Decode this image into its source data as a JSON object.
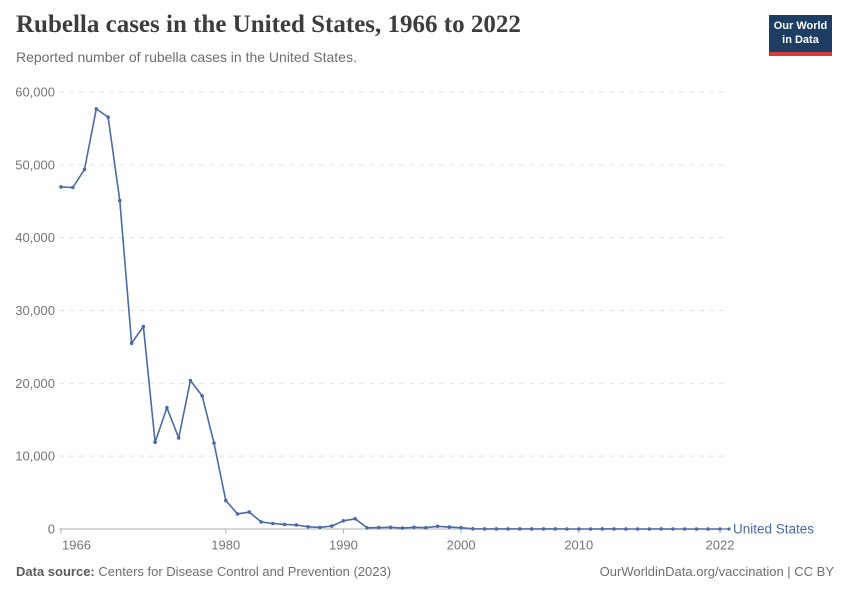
{
  "header": {
    "title": "Rubella cases in the United States, 1966 to 2022",
    "subtitle": "Reported number of rubella cases in the United States."
  },
  "logo": {
    "line1": "Our World",
    "line2": "in Data",
    "bg_color": "#1d3d63",
    "bar_color": "#d93a3a"
  },
  "chart_data": {
    "type": "line",
    "title": "Rubella cases in the United States, 1966 to 2022",
    "xlabel": "",
    "ylabel": "",
    "ylim": [
      0,
      60000
    ],
    "ytick_interval": 10000,
    "xticks": [
      1966,
      1980,
      1990,
      2000,
      2010,
      2022
    ],
    "grid": "horizontal-dashed",
    "legend": "end-of-line-label",
    "x": [
      1966,
      1967,
      1968,
      1969,
      1970,
      1971,
      1972,
      1973,
      1974,
      1975,
      1976,
      1977,
      1978,
      1979,
      1980,
      1981,
      1982,
      1983,
      1984,
      1985,
      1986,
      1987,
      1988,
      1989,
      1990,
      1991,
      1992,
      1993,
      1994,
      1995,
      1996,
      1997,
      1998,
      1999,
      2000,
      2001,
      2002,
      2003,
      2004,
      2005,
      2006,
      2007,
      2008,
      2009,
      2010,
      2011,
      2012,
      2013,
      2014,
      2015,
      2016,
      2017,
      2018,
      2019,
      2020,
      2021,
      2022
    ],
    "series": [
      {
        "name": "United States",
        "color": "#4a6aa8",
        "values": [
          46975,
          46888,
          49371,
          57686,
          56552,
          45086,
          25507,
          27804,
          11917,
          16652,
          12491,
          20395,
          18269,
          11795,
          3904,
          2077,
          2325,
          970,
          752,
          630,
          551,
          306,
          225,
          396,
          1125,
          1401,
          160,
          192,
          227,
          128,
          238,
          181,
          364,
          267,
          176,
          23,
          18,
          7,
          10,
          11,
          11,
          12,
          16,
          3,
          5,
          4,
          9,
          9,
          6,
          5,
          1,
          7,
          4,
          6,
          6,
          6,
          3
        ]
      }
    ]
  },
  "footer": {
    "datasource_label": "Data source:",
    "datasource": "Centers for Disease Control and Prevention (2023)",
    "credit": "OurWorldinData.org/vaccination | CC BY"
  }
}
